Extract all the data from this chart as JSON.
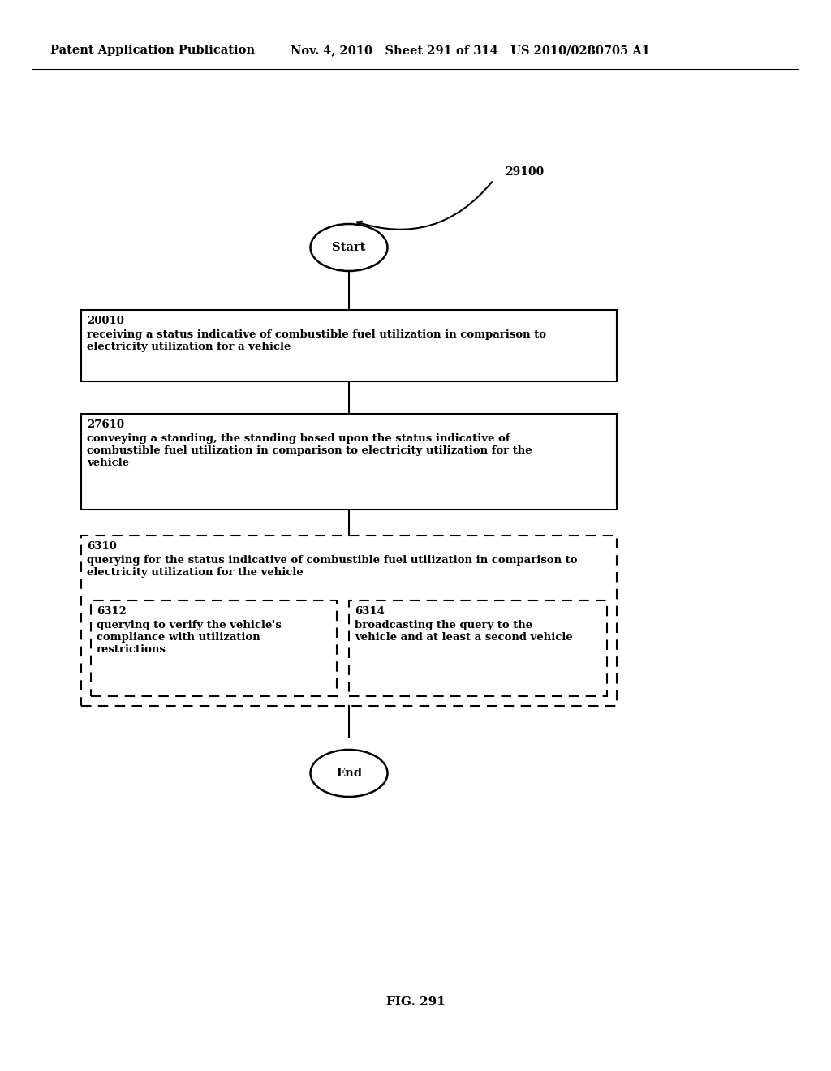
{
  "header_left": "Patent Application Publication",
  "header_mid": "Nov. 4, 2010   Sheet 291 of 314   US 2010/0280705 A1",
  "figure_label": "FIG. 291",
  "diagram_label": "29100",
  "start_label": "Start",
  "end_label": "End",
  "box1_id": "20010",
  "box1_text": "receiving a status indicative of combustible fuel utilization in comparison to\nelectricity utilization for a vehicle",
  "box2_id": "27610",
  "box2_text": "conveying a standing, the standing based upon the status indicative of\ncombustible fuel utilization in comparison to electricity utilization for the\nvehicle",
  "box3_id": "6310",
  "box3_text": "querying for the status indicative of combustible fuel utilization in comparison to\nelectricity utilization for the vehicle",
  "box3a_id": "6312",
  "box3a_text": "querying to verify the vehicle's\ncompliance with utilization\nrestrictions",
  "box3b_id": "6314",
  "box3b_text": "broadcasting the query to the\nvehicle and at least a second vehicle",
  "bg_color": "#ffffff",
  "text_color": "#000000"
}
